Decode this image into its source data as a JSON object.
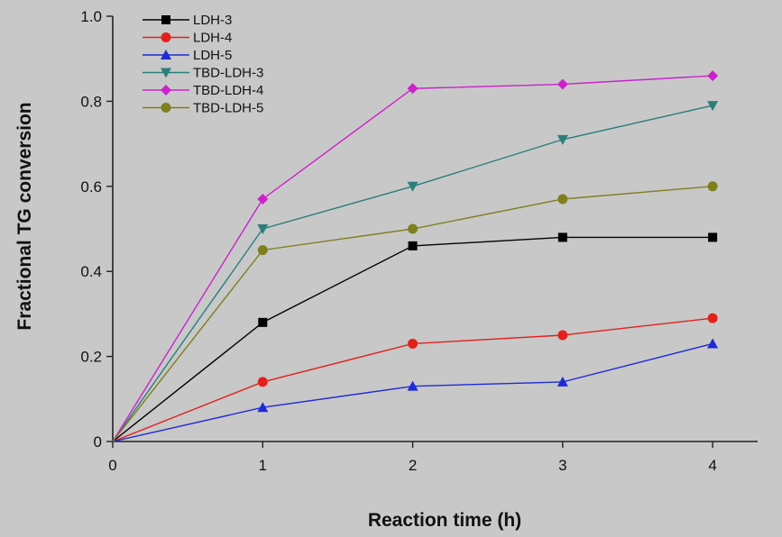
{
  "chart_data": {
    "type": "line",
    "title": "",
    "xlabel": "Reaction time (h)",
    "ylabel": "Fractional TG conversion",
    "xlim": [
      0,
      4.3
    ],
    "ylim": [
      0,
      1.0
    ],
    "x_ticks": [
      {
        "value": 0,
        "label": "0"
      },
      {
        "value": 1,
        "label": "1"
      },
      {
        "value": 2,
        "label": "2"
      },
      {
        "value": 3,
        "label": "3"
      },
      {
        "value": 4,
        "label": "4"
      }
    ],
    "y_ticks": [
      {
        "value": 0,
        "label": "0"
      },
      {
        "value": 0.2,
        "label": "0.2"
      },
      {
        "value": 0.4,
        "label": "0.4"
      },
      {
        "value": 0.6,
        "label": "0.6"
      },
      {
        "value": 0.8,
        "label": "0.8"
      },
      {
        "value": 1.0,
        "label": "1.0"
      }
    ],
    "grid": false,
    "legend_position": "top-left",
    "x": [
      0,
      1,
      2,
      3,
      4
    ],
    "series": [
      {
        "name": "LDH-3",
        "marker": "square",
        "color": "#000000",
        "values": [
          0,
          0.28,
          0.46,
          0.48,
          0.48
        ]
      },
      {
        "name": "LDH-4",
        "marker": "circle",
        "color": "#e3211c",
        "values": [
          0,
          0.14,
          0.23,
          0.25,
          0.29
        ]
      },
      {
        "name": "LDH-5",
        "marker": "triangle-up",
        "color": "#1f2bd6",
        "values": [
          0,
          0.08,
          0.13,
          0.14,
          0.23
        ]
      },
      {
        "name": "TBD-LDH-3",
        "marker": "triangle-down",
        "color": "#2a7f7a",
        "values": [
          0,
          0.5,
          0.6,
          0.71,
          0.79
        ]
      },
      {
        "name": "TBD-LDH-4",
        "marker": "diamond",
        "color": "#cc22cc",
        "values": [
          0,
          0.57,
          0.83,
          0.84,
          0.86
        ]
      },
      {
        "name": "TBD-LDH-5",
        "marker": "circle",
        "color": "#7f7f1f",
        "values": [
          0,
          0.45,
          0.5,
          0.57,
          0.6
        ]
      }
    ]
  }
}
